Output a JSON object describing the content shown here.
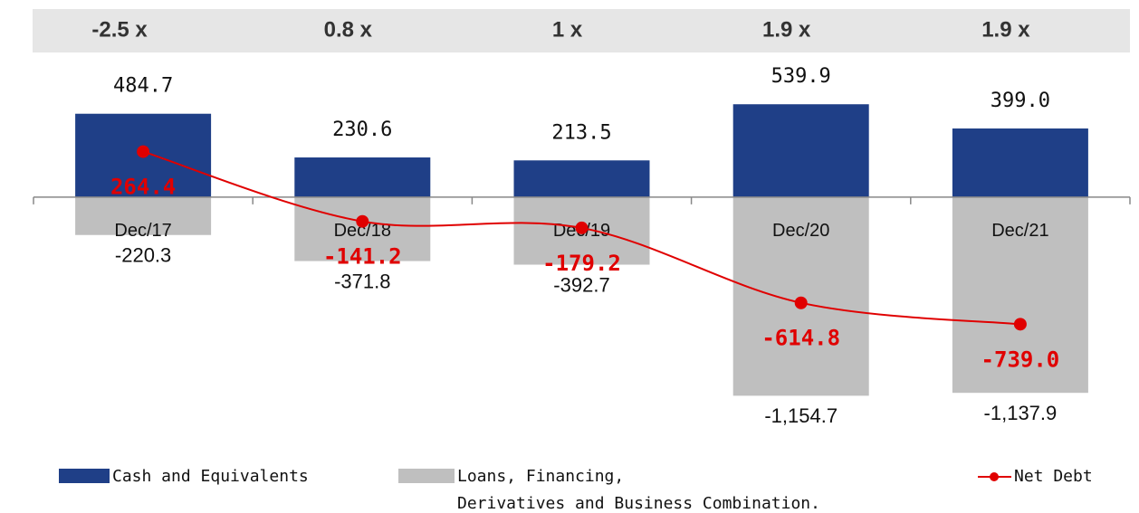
{
  "chart_data": {
    "type": "bar",
    "multiples": [
      "-2.5 x",
      "0.8 x",
      "1 x",
      "1.9 x",
      "1.9 x"
    ],
    "categories": [
      "Dec/17",
      "Dec/18",
      "Dec/19",
      "Dec/20",
      "Dec/21"
    ],
    "ylim": [
      -1300,
      620
    ],
    "series": [
      {
        "name": "Cash and Equivalents",
        "color": "#1f3f87",
        "type": "bar",
        "values": [
          484.7,
          230.6,
          213.5,
          539.9,
          399.0
        ],
        "value_labels": [
          "484.7",
          "230.6",
          "213.5",
          "539.9",
          "399.0"
        ]
      },
      {
        "name": "Loans, Financing,\nDerivatives and Business Combination.",
        "color": "#bfbfbf",
        "type": "bar",
        "values": [
          -220.3,
          -371.8,
          -392.7,
          -1154.7,
          -1137.9
        ],
        "value_labels": [
          "-220.3",
          "-371.8",
          "-392.7",
          "-1,154.7",
          "-1,137.9"
        ]
      },
      {
        "name": "Net Debt",
        "color": "#e00000",
        "type": "line",
        "values": [
          264.4,
          -141.2,
          -179.2,
          -614.8,
          -739.0
        ],
        "value_labels": [
          "264.4",
          "-141.2",
          "-179.2",
          "-614.8",
          "-739.0"
        ]
      }
    ]
  }
}
